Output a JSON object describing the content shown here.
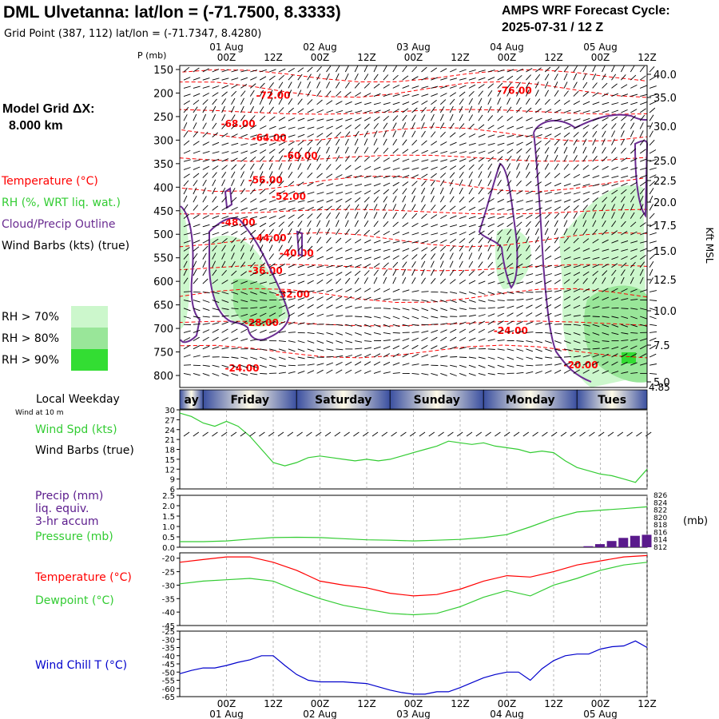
{
  "header": {
    "title": "DML Ulvetanna:  lat/lon = (-71.7500, 8.3333)",
    "subtitle": "Grid Point (387, 112) lat/lon = (-71.7347, 8.4280)",
    "cycle_label": "AMPS WRF Forecast Cycle:",
    "cycle_value": "2025-07-31 / 12  Z"
  },
  "legend": {
    "model_grid": "Model Grid ΔX:",
    "model_grid_value": "8.000 km",
    "temperature": "Temperature (°C)",
    "rh": "RH (%, WRT liq. wat.)",
    "cloud": "Cloud/Precip Outline",
    "wind": "Wind Barbs (kts) (true)",
    "rh_levels": [
      {
        "label": "RH > 70%",
        "color": "#ccf7cc"
      },
      {
        "label": "RH > 80%",
        "color": "#99e699"
      },
      {
        "label": "RH > 90%",
        "color": "#33dd33"
      }
    ]
  },
  "colors": {
    "temperature": "#ff0000",
    "rh": "#33cc33",
    "cloud": "#6a2c91",
    "wind_chill": "#0000cc",
    "precip": "#5a1a8c",
    "weekday_bar": "#3a4fa0"
  },
  "time_axis": {
    "tick_labels": [
      "00Z",
      "12Z",
      "00Z",
      "12Z",
      "00Z",
      "12Z",
      "00Z",
      "12Z",
      "00Z",
      "12Z"
    ],
    "date_labels": [
      "01 Aug",
      "02 Aug",
      "03 Aug",
      "04 Aug",
      "05 Aug"
    ],
    "pressure_axis_title": "P (mb)",
    "height_axis_title": "Kft MSL",
    "bottom_value": "4.85"
  },
  "weekday_bar": {
    "title": "Local Weekday",
    "days": [
      "ay",
      "Friday",
      "Saturday",
      "Sunday",
      "Monday",
      "Tues"
    ]
  },
  "panel_labels": {
    "wind_at": "Wind at 10 m",
    "wind_speed": "Wind Spd (kts)",
    "wind_barbs": "Wind Barbs (true)",
    "precip": "Precip (mm)",
    "precip_2": "liq. equiv.",
    "precip_3": "3-hr accum",
    "pressure": "Pressure (mb)",
    "pressure_unit": "(mb)",
    "temperature": "Temperature (°C)",
    "dewpoint": "Dewpoint (°C)",
    "wind_chill": "Wind Chill T (°C)"
  },
  "chart_data": [
    {
      "type": "heatmap",
      "title": "",
      "x_hours": [
        12,
        132
      ],
      "y_pressure": [
        150,
        200,
        250,
        300,
        350,
        400,
        450,
        500,
        550,
        600,
        650,
        700,
        750,
        800
      ],
      "y_pressure_labels": [
        "150",
        "200",
        "250",
        "300",
        "350",
        "400",
        "450",
        "500",
        "550",
        "600",
        "650",
        "700",
        "750",
        "800"
      ],
      "y_height_kft": [
        40.0,
        35.0,
        30.0,
        25.0,
        22.5,
        20.0,
        17.5,
        15.0,
        12.5,
        10.0,
        7.5,
        5.0
      ],
      "y_height_labels": [
        "40.0",
        "35.0",
        "30.0",
        "25.0",
        "22.5",
        "20.0",
        "17.5",
        "15.0",
        "12.5",
        "10.0",
        "7.5",
        "5.0"
      ],
      "temperature_contour_labels": [
        {
          "text": "-72.00",
          "hour": 36,
          "p": 205
        },
        {
          "text": "-76.00",
          "hour": 98,
          "p": 195
        },
        {
          "text": "-68.00",
          "hour": 27,
          "p": 265
        },
        {
          "text": "-64.00",
          "hour": 35,
          "p": 295
        },
        {
          "text": "-60.00",
          "hour": 43,
          "p": 333
        },
        {
          "text": "-56.00",
          "hour": 34,
          "p": 385
        },
        {
          "text": "-52.00",
          "hour": 40,
          "p": 420
        },
        {
          "text": "-48.00",
          "hour": 27,
          "p": 475
        },
        {
          "text": "-44.00",
          "hour": 35,
          "p": 508
        },
        {
          "text": "-40.00",
          "hour": 42,
          "p": 540
        },
        {
          "text": "-36.00",
          "hour": 34,
          "p": 578
        },
        {
          "text": "-32.00",
          "hour": 41,
          "p": 628
        },
        {
          "text": "-28.00",
          "hour": 33,
          "p": 688
        },
        {
          "text": "-24.00",
          "hour": 97,
          "p": 705
        },
        {
          "text": "-24.00",
          "hour": 28,
          "p": 785
        },
        {
          "text": "-20.00",
          "hour": 115,
          "p": 778
        }
      ]
    },
    {
      "type": "line",
      "title": "",
      "ylabel": "Wind Spd (kts)",
      "y_ticks": [
        30,
        27,
        24,
        21,
        18,
        15,
        12,
        9,
        6
      ],
      "ylim": [
        6,
        30
      ],
      "series": [
        {
          "name": "Wind Spd (kts)",
          "x": [
            12,
            15,
            18,
            21,
            24,
            27,
            30,
            33,
            36,
            39,
            42,
            45,
            48,
            51,
            54,
            57,
            60,
            63,
            66,
            69,
            72,
            75,
            78,
            81,
            84,
            87,
            90,
            93,
            96,
            99,
            102,
            105,
            108,
            111,
            114,
            117,
            120,
            123,
            126,
            129,
            132
          ],
          "y": [
            29,
            28,
            26,
            25,
            26.5,
            25,
            22,
            18,
            14,
            13,
            14,
            15.5,
            16,
            15.5,
            15,
            14.5,
            15,
            14.5,
            15,
            16,
            17,
            18,
            19,
            20.5,
            20,
            19.5,
            20,
            19,
            18.5,
            18,
            17,
            17.5,
            17,
            14.5,
            12.5,
            11.5,
            10.5,
            10,
            9,
            8,
            12
          ]
        }
      ]
    },
    {
      "type": "line",
      "title": "",
      "y_ticks": [
        2.5,
        2.0,
        1.5,
        1.0,
        0.5,
        0.0
      ],
      "ylim": [
        0,
        2.5
      ],
      "y2_ticks": [
        826,
        824,
        822,
        820,
        818,
        816,
        814,
        812
      ],
      "y2lim": [
        812,
        826
      ],
      "series": [
        {
          "name": "Pressure (mb)",
          "x": [
            12,
            18,
            24,
            30,
            36,
            42,
            48,
            54,
            60,
            66,
            72,
            78,
            84,
            90,
            96,
            102,
            108,
            114,
            120,
            126,
            132
          ],
          "y": [
            813.5,
            813.5,
            813.7,
            814.2,
            814.6,
            814.7,
            814.6,
            814.3,
            814.0,
            813.9,
            813.7,
            813.9,
            814.1,
            814.6,
            815.4,
            817.5,
            819.8,
            821.5,
            822.0,
            822.4,
            822.9
          ]
        },
        {
          "name": "Precip (mm)",
          "x": [
            117,
            120,
            123,
            126,
            129,
            132
          ],
          "y": [
            0.05,
            0.15,
            0.3,
            0.45,
            0.55,
            0.6
          ]
        }
      ]
    },
    {
      "type": "line",
      "title": "",
      "y_ticks": [
        -20,
        -25,
        -30,
        -35,
        -40,
        -45
      ],
      "ylim": [
        -45,
        -18
      ],
      "series": [
        {
          "name": "Temperature (°C)",
          "x": [
            12,
            18,
            24,
            30,
            36,
            42,
            48,
            54,
            60,
            66,
            72,
            78,
            84,
            90,
            96,
            102,
            108,
            114,
            120,
            126,
            132
          ],
          "y": [
            -21.5,
            -20.5,
            -19.5,
            -19.5,
            -21.5,
            -24.5,
            -28.5,
            -30.0,
            -31.0,
            -33.0,
            -34.0,
            -33.5,
            -31.5,
            -28.5,
            -26.5,
            -27.0,
            -25.0,
            -22.5,
            -21.0,
            -19.5,
            -19.0
          ]
        },
        {
          "name": "Dewpoint (°C)",
          "x": [
            12,
            18,
            24,
            30,
            36,
            42,
            48,
            54,
            60,
            66,
            72,
            78,
            84,
            90,
            96,
            102,
            108,
            114,
            120,
            126,
            132
          ],
          "y": [
            -29.5,
            -28.5,
            -28.0,
            -27.5,
            -28.5,
            -32.0,
            -35.0,
            -37.5,
            -39.0,
            -40.5,
            -41.0,
            -40.5,
            -38.0,
            -34.5,
            -32.0,
            -34.0,
            -30.0,
            -27.5,
            -24.5,
            -22.5,
            -21.5
          ]
        }
      ]
    },
    {
      "type": "line",
      "title": "",
      "y_ticks": [
        -25,
        -30,
        -35,
        -40,
        -45,
        -50,
        -55,
        -60,
        -65
      ],
      "ylim": [
        -65,
        -25
      ],
      "series": [
        {
          "name": "Wind Chill T (°C)",
          "x": [
            12,
            15,
            18,
            21,
            24,
            27,
            30,
            33,
            36,
            39,
            42,
            45,
            48,
            51,
            54,
            57,
            60,
            63,
            66,
            69,
            72,
            75,
            78,
            81,
            84,
            87,
            90,
            93,
            96,
            99,
            102,
            105,
            108,
            111,
            114,
            117,
            120,
            123,
            126,
            129,
            132
          ],
          "y": [
            -51,
            -49,
            -47.5,
            -47.5,
            -46,
            -44,
            -42.5,
            -40,
            -40,
            -46,
            -51.5,
            -55,
            -56,
            -56,
            -56,
            -56.5,
            -57,
            -59,
            -61,
            -62.5,
            -63.5,
            -63.5,
            -62,
            -62,
            -59.5,
            -56.5,
            -53.5,
            -51.5,
            -50,
            -50,
            -55,
            -48,
            -43,
            -40,
            -39,
            -39,
            -36,
            -34.5,
            -34,
            -31,
            -35
          ]
        }
      ]
    }
  ]
}
